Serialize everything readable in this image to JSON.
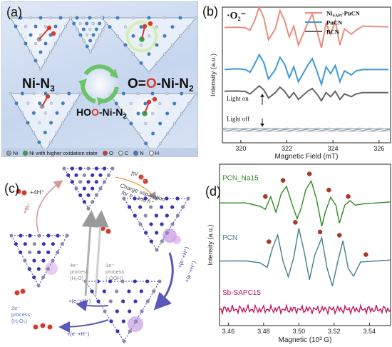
{
  "panel_a": {
    "letter": "(a)",
    "labels": {
      "ni_n3": "Ni-N3",
      "o2_ni": "O=O-Ni-N2",
      "hoo_ni": "HOO-Ni-N2"
    },
    "legend": [
      {
        "name": "Ni",
        "color": "#9aa3ad"
      },
      {
        "name": "Ni with higher oxidation state",
        "color": "#32a852"
      },
      {
        "name": "O",
        "color": "#d63a2e"
      },
      {
        "name": "C",
        "color": "#d9d9d9"
      },
      {
        "name": "N",
        "color": "#3d7fc9"
      },
      {
        "name": "H",
        "color": "#f2f2f2"
      }
    ]
  },
  "panel_c": {
    "letter": "(c)",
    "labels": {
      "hv": "hv",
      "charge_sep_1": "Charge separation",
      "charge_sep_2": "for e⁻ and h⁺",
      "plus4h": "+4H⁺",
      "plus4h_side": "+4h⁺",
      "p4e": "4e⁻",
      "p4e_process": "process",
      "p4e_species": "(H₂O)",
      "p1e": "1e⁻",
      "p1e_process": "process",
      "p1e_species": "(-OOH)",
      "p2e": "2e⁻",
      "p2e_process": "process",
      "p2e_species": "(H₂O₂)",
      "eh": "+(e⁻+H⁺)"
    }
  },
  "chart_data": [
    {
      "id": "b",
      "type": "line",
      "panel_letter": "(b)",
      "title": "·O₂⁻",
      "xlabel": "Magnetic Field (mT)",
      "ylabel": "Intensity (a.u.)",
      "xlim": [
        319.2,
        326.5
      ],
      "x_ticks": [
        320,
        322,
        324,
        326
      ],
      "legend_position": "top-right",
      "annotations": [
        "Light on",
        "Light off"
      ],
      "series": [
        {
          "name": "Ni_SAPt-PuCN",
          "legend_main": "Ni",
          "legend_sub": "SAPt",
          "legend_rest": "-PuCN",
          "color": "#e8907e",
          "points": [
            [
              319.3,
              0.85
            ],
            [
              319.8,
              0.852
            ],
            [
              320.2,
              0.848
            ],
            [
              320.4,
              0.83
            ],
            [
              320.6,
              0.9
            ],
            [
              320.8,
              1.0
            ],
            [
              321.0,
              0.92
            ],
            [
              321.2,
              0.76
            ],
            [
              321.5,
              0.84
            ],
            [
              321.7,
              0.975
            ],
            [
              321.9,
              0.9
            ],
            [
              322.1,
              0.78
            ],
            [
              322.3,
              0.86
            ],
            [
              322.5,
              0.72
            ],
            [
              322.7,
              0.8
            ],
            [
              322.9,
              0.88
            ],
            [
              323.1,
              0.95
            ],
            [
              323.3,
              0.83
            ],
            [
              323.5,
              0.7
            ],
            [
              323.7,
              0.88
            ],
            [
              323.9,
              0.8
            ],
            [
              324.1,
              0.9
            ],
            [
              324.3,
              0.72
            ],
            [
              324.5,
              0.84
            ],
            [
              324.8,
              0.8
            ],
            [
              325.0,
              0.83
            ],
            [
              325.3,
              0.86
            ],
            [
              326.4,
              0.855
            ]
          ]
        },
        {
          "name": "PuCN",
          "legend_main": "PuCN",
          "legend_sub": "",
          "legend_rest": "",
          "color": "#3f9ad8",
          "points": [
            [
              319.3,
              0.54
            ],
            [
              319.8,
              0.545
            ],
            [
              320.2,
              0.54
            ],
            [
              320.4,
              0.52
            ],
            [
              320.6,
              0.58
            ],
            [
              320.8,
              0.65
            ],
            [
              321.0,
              0.59
            ],
            [
              321.2,
              0.47
            ],
            [
              321.5,
              0.54
            ],
            [
              321.7,
              0.63
            ],
            [
              321.9,
              0.58
            ],
            [
              322.1,
              0.48
            ],
            [
              322.3,
              0.56
            ],
            [
              322.5,
              0.45
            ],
            [
              322.7,
              0.51
            ],
            [
              322.9,
              0.57
            ],
            [
              323.1,
              0.62
            ],
            [
              323.3,
              0.53
            ],
            [
              323.5,
              0.43
            ],
            [
              323.7,
              0.56
            ],
            [
              323.9,
              0.51
            ],
            [
              324.1,
              0.57
            ],
            [
              324.3,
              0.45
            ],
            [
              324.5,
              0.53
            ],
            [
              324.8,
              0.5
            ],
            [
              325.0,
              0.53
            ],
            [
              325.3,
              0.54
            ],
            [
              326.4,
              0.54
            ]
          ]
        },
        {
          "name": "BCN",
          "legend_main": "BCN",
          "legend_sub": "",
          "legend_rest": "",
          "color": "#666666",
          "points": [
            [
              319.3,
              0.38
            ],
            [
              319.8,
              0.382
            ],
            [
              320.2,
              0.378
            ],
            [
              320.4,
              0.36
            ],
            [
              320.6,
              0.39
            ],
            [
              320.8,
              0.42
            ],
            [
              321.0,
              0.39
            ],
            [
              321.2,
              0.33
            ],
            [
              321.5,
              0.37
            ],
            [
              321.7,
              0.41
            ],
            [
              321.9,
              0.38
            ],
            [
              322.1,
              0.33
            ],
            [
              322.3,
              0.37
            ],
            [
              322.5,
              0.32
            ],
            [
              322.7,
              0.35
            ],
            [
              322.9,
              0.38
            ],
            [
              323.1,
              0.4
            ],
            [
              323.3,
              0.36
            ],
            [
              323.5,
              0.31
            ],
            [
              323.7,
              0.37
            ],
            [
              323.9,
              0.34
            ],
            [
              324.1,
              0.38
            ],
            [
              324.3,
              0.32
            ],
            [
              324.5,
              0.36
            ],
            [
              324.8,
              0.34
            ],
            [
              325.0,
              0.36
            ],
            [
              325.3,
              0.37
            ],
            [
              326.4,
              0.37
            ]
          ]
        }
      ],
      "light_off_baselines": [
        {
          "color": "#8a8a8a",
          "level": 0.105
        },
        {
          "color": "#5aa9dd",
          "level": 0.095
        },
        {
          "color": "#e8a090",
          "level": 0.085
        }
      ]
    },
    {
      "id": "d",
      "type": "line",
      "panel_letter": "(d)",
      "xlabel": "Magnetic (10³ G)",
      "ylabel": "Intensity (a.u.)",
      "xlim": [
        3.455,
        3.552
      ],
      "x_ticks": [
        3.46,
        3.48,
        3.5,
        3.52,
        3.54
      ],
      "series": [
        {
          "name": "PCN_Na15",
          "label": "PCN_Na15",
          "color": "#2e8b22",
          "points": [
            [
              3.455,
              0.76
            ],
            [
              3.47,
              0.76
            ],
            [
              3.478,
              0.74
            ],
            [
              3.481,
              0.72
            ],
            [
              3.484,
              0.8
            ],
            [
              3.487,
              0.7
            ],
            [
              3.49,
              0.82
            ],
            [
              3.493,
              0.86
            ],
            [
              3.496,
              0.76
            ],
            [
              3.499,
              0.66
            ],
            [
              3.501,
              0.72
            ],
            [
              3.504,
              0.84
            ],
            [
              3.507,
              0.9
            ],
            [
              3.51,
              0.78
            ],
            [
              3.513,
              0.62
            ],
            [
              3.515,
              0.7
            ],
            [
              3.518,
              0.8
            ],
            [
              3.521,
              0.74
            ],
            [
              3.523,
              0.64
            ],
            [
              3.526,
              0.74
            ],
            [
              3.529,
              0.78
            ],
            [
              3.532,
              0.74
            ],
            [
              3.536,
              0.76
            ],
            [
              3.552,
              0.76
            ]
          ]
        },
        {
          "name": "PCN",
          "label": "PCN",
          "color": "#3f7f8c",
          "points": [
            [
              3.455,
              0.4
            ],
            [
              3.47,
              0.4
            ],
            [
              3.478,
              0.39
            ],
            [
              3.482,
              0.36
            ],
            [
              3.485,
              0.48
            ],
            [
              3.488,
              0.56
            ],
            [
              3.491,
              0.4
            ],
            [
              3.494,
              0.3
            ],
            [
              3.497,
              0.42
            ],
            [
              3.5,
              0.6
            ],
            [
              3.503,
              0.46
            ],
            [
              3.506,
              0.28
            ],
            [
              3.509,
              0.44
            ],
            [
              3.513,
              0.54
            ],
            [
              3.516,
              0.36
            ],
            [
              3.519,
              0.24
            ],
            [
              3.522,
              0.4
            ],
            [
              3.525,
              0.52
            ],
            [
              3.528,
              0.36
            ],
            [
              3.531,
              0.3
            ],
            [
              3.535,
              0.4
            ],
            [
              3.552,
              0.4
            ]
          ]
        },
        {
          "name": "Sb-SAPC15",
          "label": "Sb-SAPC15",
          "color": "#c2185b",
          "points": [
            [
              3.455,
              0.1
            ],
            [
              3.552,
              0.1
            ]
          ]
        }
      ]
    }
  ]
}
